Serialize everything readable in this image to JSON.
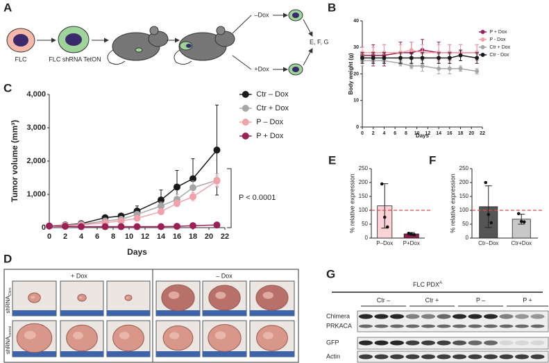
{
  "panel_labels": [
    "A",
    "B",
    "C",
    "D",
    "E",
    "F",
    "G"
  ],
  "diagram": {
    "cell_1": "FLC",
    "cell_2": "FLC shRNA TetON",
    "minus_dox": "–Dox",
    "plus_dox": "+Dox",
    "outcome": "E, F, G"
  },
  "chart_data": [
    {
      "type": "line",
      "ylabel": "Body weight (g)",
      "xlabel": "Days",
      "x": [
        0,
        2,
        4,
        7,
        9,
        11,
        14,
        16,
        18,
        21
      ],
      "xlim": [
        0,
        22
      ],
      "xticks": [
        0,
        2,
        4,
        6,
        8,
        10,
        12,
        14,
        16,
        18,
        20,
        22
      ],
      "ylim": [
        0,
        40
      ],
      "yticks": [
        0,
        10,
        20,
        30,
        40
      ],
      "legend": "upper right",
      "series": [
        {
          "name": "P + Dox",
          "color": "#9c1f55",
          "values": [
            27,
            27,
            27,
            28,
            28,
            29,
            28,
            28,
            28,
            28
          ],
          "errors": [
            3,
            4,
            4,
            4,
            4,
            4,
            4,
            3,
            3,
            3
          ]
        },
        {
          "name": "P - Dox",
          "color": "#f2a0aa",
          "values": [
            28,
            28,
            28,
            28,
            29,
            28,
            28,
            28,
            28,
            28
          ],
          "errors": [
            2,
            2,
            3,
            3,
            3,
            3,
            3,
            3,
            3,
            3
          ]
        },
        {
          "name": "Ctr + Dox",
          "color": "#a6a6a6",
          "values": [
            25,
            25,
            25,
            24,
            23,
            23,
            22,
            22,
            22,
            21
          ],
          "errors": [
            2,
            1,
            1,
            1,
            1,
            2,
            2,
            2,
            1,
            1
          ]
        },
        {
          "name": "Ctr - Dox",
          "color": "#1a1a1a",
          "values": [
            26,
            26,
            26,
            26,
            26,
            26,
            26,
            26,
            27,
            26
          ],
          "errors": [
            2,
            2,
            2,
            2,
            2,
            2,
            2,
            2,
            2,
            2
          ]
        }
      ]
    },
    {
      "type": "line",
      "ylabel": "Tumor volume (mm³)",
      "xlabel": "Days",
      "x": [
        0,
        2,
        4,
        7,
        9,
        11,
        14,
        16,
        18,
        21
      ],
      "xlim": [
        0,
        22
      ],
      "xticks": [
        0,
        2,
        4,
        6,
        8,
        10,
        12,
        14,
        16,
        18,
        20,
        22
      ],
      "ylim": [
        0,
        4000
      ],
      "yticks": [
        0,
        {
          "value": 1000,
          "label": "1,000"
        },
        {
          "value": 2000,
          "label": "2,000"
        },
        {
          "value": 3000,
          "label": "3,000"
        },
        {
          "value": 4000,
          "label": "4,000"
        }
      ],
      "legend": "right",
      "annotation": "P < 0.0001",
      "series": [
        {
          "name": "Ctr – Dox",
          "color": "#1a1a1a",
          "values": [
            50,
            80,
            120,
            300,
            350,
            500,
            830,
            1220,
            1470,
            2330
          ],
          "errors": [
            20,
            30,
            40,
            50,
            60,
            150,
            300,
            500,
            600,
            1350
          ]
        },
        {
          "name": "Ctr + Dox",
          "color": "#a6a6a6",
          "values": [
            50,
            70,
            100,
            200,
            250,
            400,
            650,
            850,
            1200,
            1420
          ],
          "errors": [
            20,
            20,
            30,
            40,
            60,
            80,
            120,
            150,
            200,
            200
          ]
        },
        {
          "name": "P – Dox",
          "color": "#f2a0aa",
          "values": [
            50,
            60,
            80,
            150,
            200,
            280,
            480,
            730,
            930,
            1400
          ],
          "errors": [
            20,
            20,
            20,
            30,
            40,
            60,
            80,
            100,
            120,
            150
          ]
        },
        {
          "name": "P + Dox",
          "color": "#9c1f55",
          "values": [
            50,
            40,
            30,
            30,
            30,
            30,
            30,
            40,
            60,
            80
          ],
          "errors": [
            10,
            10,
            10,
            10,
            10,
            10,
            10,
            10,
            15,
            20
          ]
        }
      ]
    },
    {
      "type": "bar",
      "ylabel": "% relative expression",
      "categories": [
        "P–Dox",
        "P+Dox"
      ],
      "values": [
        116,
        15
      ],
      "errors": [
        80,
        5
      ],
      "colors": [
        "#fbd3d7",
        "#8e1c4d"
      ],
      "points": [
        [
          195,
          75,
          40
        ],
        [
          17,
          14,
          12
        ]
      ],
      "reference_line": 100,
      "ylim": [
        0,
        250
      ],
      "yticks": [
        0,
        50,
        100,
        150,
        200,
        250
      ]
    },
    {
      "type": "bar",
      "ylabel": "% relative expression",
      "categories": [
        "Ctr–Dox",
        "Ctr+Dox"
      ],
      "values": [
        113,
        68
      ],
      "errors": [
        75,
        18
      ],
      "colors": [
        "#555555",
        "#c8c8c8"
      ],
      "points": [
        [
          200,
          85,
          55
        ],
        [
          88,
          60,
          58
        ]
      ],
      "reference_line": 100,
      "ylim": [
        0,
        250
      ],
      "yticks": [
        0,
        50,
        100,
        150,
        200,
        250
      ]
    }
  ],
  "photos": {
    "plus_dox": "+ Dox",
    "minus_dox": "– Dox",
    "row_label": "shRNA",
    "row_1_subscript": "Chim",
    "row_2_subscript": "control"
  },
  "blot": {
    "header": "FLC  PDX",
    "header_superscript": "A",
    "groups": [
      "Ctr –",
      "Ctr +",
      "P –",
      "P +"
    ],
    "rows": [
      "Chimera",
      "PRKACA",
      "GFP",
      "Actin"
    ]
  }
}
